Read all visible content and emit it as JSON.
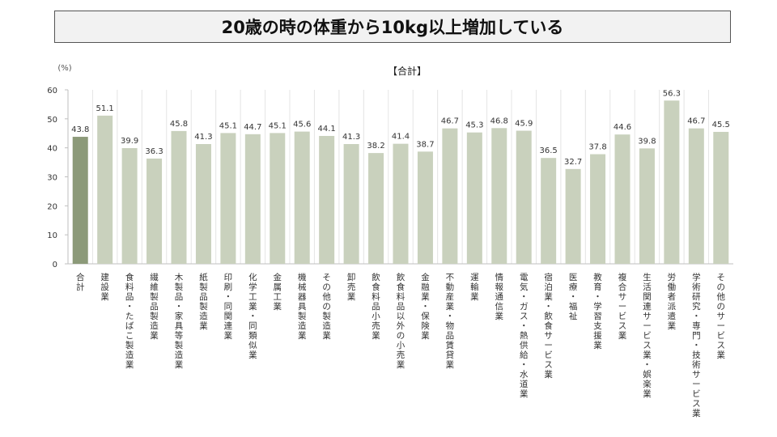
{
  "page_title": "20歳の時の体重から10kg以上増加している",
  "chart_data": {
    "type": "bar",
    "title": "【合計】",
    "ylabel": "(%)",
    "ylim": [
      0,
      60
    ],
    "yticks": [
      0,
      10,
      20,
      30,
      40,
      50,
      60
    ],
    "grid": false,
    "colors": {
      "total": "#8c9a79",
      "other": "#c9d1bd",
      "axis": "#bfbfbf",
      "text": "#333333"
    },
    "categories": [
      "合計",
      "建設業",
      "食料品・たばこ製造業",
      "繊維製品製造業",
      "木製品・家具等製造業",
      "紙製品製造業",
      "印刷・同関連業",
      "化学工業・同類似業",
      "金属工業",
      "機械器具製造業",
      "その他の製造業",
      "卸売業",
      "飲食料品小売業",
      "飲食料品以外の小売業",
      "金融業・保険業",
      "不動産業・物品賃貸業",
      "運輸業",
      "情報通信業",
      "電気・ガス・熱供給・水道業",
      "宿泊業・飲食サービス業",
      "医療・福祉",
      "教育・学習支援業",
      "複合サービス業",
      "生活関連サービス業・娯楽業",
      "労働者派遣業",
      "学術研究・専門・技術サービス業",
      "その他のサービス業"
    ],
    "values": [
      43.8,
      51.1,
      39.9,
      36.3,
      45.8,
      41.3,
      45.1,
      44.7,
      45.1,
      45.6,
      44.1,
      41.3,
      38.2,
      41.4,
      38.7,
      46.7,
      45.3,
      46.8,
      45.9,
      36.5,
      32.7,
      37.8,
      44.6,
      39.8,
      56.3,
      46.7,
      45.5
    ],
    "value_labels": [
      "43.8",
      "51.1",
      "39.9",
      "36.3",
      "45.8",
      "41.3",
      "45.1",
      "44.7",
      "45.1",
      "45.6",
      "44.1",
      "41.3",
      "38.2",
      "41.4",
      "38.7",
      "46.7",
      "45.3",
      "46.8",
      "45.9",
      "36.5",
      "32.7",
      "37.8",
      "44.6",
      "39.8",
      "56.3",
      "46.7",
      "45.5"
    ]
  }
}
